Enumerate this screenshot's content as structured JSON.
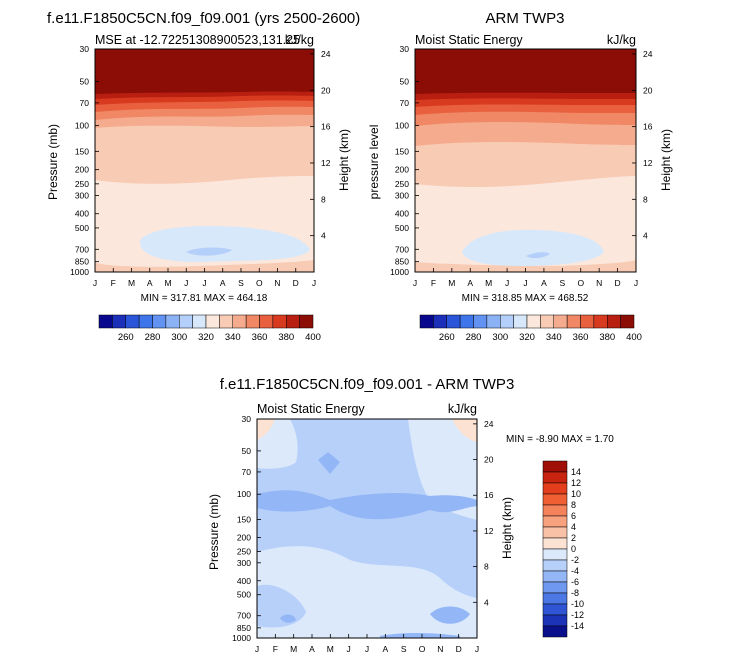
{
  "chart_data": [
    {
      "type": "heatmap",
      "title": "f.e11.F1850C5CN.f09_f09.001 (yrs 2500-2600)",
      "subtitle_left": "MSE at -12.72251308900523,131.25",
      "units": "kJ/kg",
      "xlabel": "",
      "ylabel": "Pressure (mb)",
      "ylabel_right": "Height (km)",
      "x_ticks": [
        "J",
        "F",
        "M",
        "A",
        "M",
        "J",
        "J",
        "A",
        "S",
        "O",
        "N",
        "D",
        "J"
      ],
      "y_ticks": [
        "30",
        "50",
        "70",
        "100",
        "150",
        "200",
        "250",
        "300",
        "400",
        "500",
        "700",
        "850",
        "1000"
      ],
      "y2_ticks": [
        "24",
        "20",
        "16",
        "12",
        "8",
        "4"
      ],
      "ylim": [
        1000,
        30
      ],
      "stats": "MIN = 317.81  MAX = 464.18",
      "contour_bands_pressure_mb": [
        {
          "from": 30,
          "to": 47,
          "value": 410
        },
        {
          "from": 47,
          "to": 52,
          "value": 395
        },
        {
          "from": 52,
          "to": 58,
          "value": 385
        },
        {
          "from": 58,
          "to": 66,
          "value": 375
        },
        {
          "from": 66,
          "to": 76,
          "value": 365
        },
        {
          "from": 76,
          "to": 88,
          "value": 355
        },
        {
          "from": 88,
          "to": 105,
          "value": 345
        },
        {
          "from": 105,
          "to": 255,
          "value": 335
        },
        {
          "from": 255,
          "to": 1000,
          "value": 325
        }
      ],
      "low_region_value": 315,
      "lowest_core_value": 305
    },
    {
      "type": "heatmap",
      "title": "ARM TWP3",
      "subtitle_left": "Moist Static Energy",
      "units": "kJ/kg",
      "xlabel": "",
      "ylabel": "pressure level",
      "ylabel_right": "Height (km)",
      "x_ticks": [
        "J",
        "F",
        "M",
        "A",
        "M",
        "J",
        "J",
        "A",
        "S",
        "O",
        "N",
        "D",
        "J"
      ],
      "y_ticks": [
        "30",
        "50",
        "70",
        "100",
        "150",
        "200",
        "250",
        "300",
        "400",
        "500",
        "700",
        "850",
        "1000"
      ],
      "y2_ticks": [
        "24",
        "20",
        "16",
        "12",
        "8",
        "4"
      ],
      "ylim": [
        1000,
        30
      ],
      "stats": "MIN = 318.85  MAX = 468.52"
    },
    {
      "type": "heatmap",
      "title": "f.e11.F1850C5CN.f09_f09.001 - ARM TWP3",
      "subtitle_left": "Moist Static Energy",
      "units": "kJ/kg",
      "xlabel": "",
      "ylabel": "Pressure (mb)",
      "ylabel_right": "Height (km)",
      "x_ticks": [
        "J",
        "F",
        "M",
        "A",
        "M",
        "J",
        "J",
        "A",
        "S",
        "O",
        "N",
        "D",
        "J"
      ],
      "y_ticks": [
        "30",
        "50",
        "70",
        "100",
        "150",
        "200",
        "250",
        "300",
        "400",
        "500",
        "700",
        "850",
        "1000"
      ],
      "y2_ticks": [
        "24",
        "20",
        "16",
        "12",
        "8",
        "4"
      ],
      "ylim": [
        1000,
        30
      ],
      "stats": "MIN =  -8.90 MAX =   1.70"
    }
  ],
  "colorbar_abs": {
    "labels": [
      "260",
      "280",
      "300",
      "320",
      "340",
      "360",
      "380",
      "400"
    ],
    "colors": [
      "#08088f",
      "#1b2fb8",
      "#2a55d8",
      "#3f75ea",
      "#6393f2",
      "#8cb2f6",
      "#b4cff9",
      "#d8e8fb",
      "#fbe7dc",
      "#f8cbb4",
      "#f5ab8d",
      "#f08865",
      "#e9603f",
      "#d83a20",
      "#b81f10",
      "#8c0d06"
    ]
  },
  "colorbar_diff": {
    "labels": [
      "14",
      "12",
      "10",
      "8",
      "6",
      "4",
      "2",
      "0",
      "-2",
      "-4",
      "-6",
      "-8",
      "-10",
      "-12",
      "-14"
    ],
    "colors": [
      "#a00f07",
      "#c8240f",
      "#e43e1d",
      "#f05f33",
      "#f4825a",
      "#f7a17f",
      "#f9c1a6",
      "#fbe2d3",
      "#dbe9fb",
      "#b7d0fa",
      "#93b6f6",
      "#6f98f0",
      "#4c78e6",
      "#2f55d5",
      "#1c33b8",
      "#0a0f8c"
    ]
  }
}
